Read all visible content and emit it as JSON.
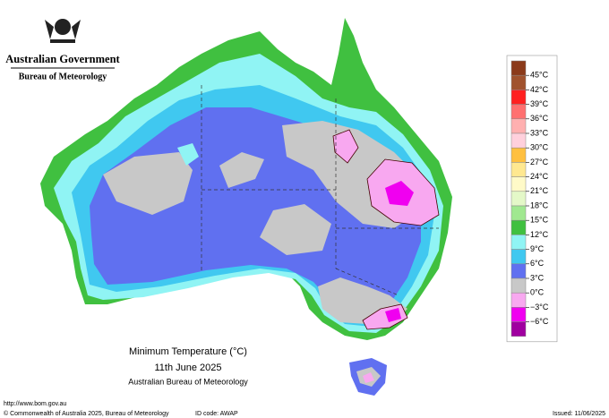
{
  "header": {
    "government": "Australian Government",
    "agency": "Bureau of Meteorology"
  },
  "legend": {
    "labels": [
      "45°C",
      "42°C",
      "39°C",
      "36°C",
      "33°C",
      "30°C",
      "27°C",
      "24°C",
      "21°C",
      "18°C",
      "15°C",
      "12°C",
      "9°C",
      "6°C",
      "3°C",
      "0°C",
      "−3°C",
      "−6°C"
    ],
    "colors": [
      "#8b3a1a",
      "#a0522d",
      "#ff2020",
      "#ff7070",
      "#ffb0b0",
      "#ffd0dc",
      "#ffc040",
      "#ffe890",
      "#fffac8",
      "#e4f8c8",
      "#a0e890",
      "#40c040",
      "#90f4f4",
      "#40c8f0",
      "#6070f0",
      "#c8c8c8",
      "#f8a8f0",
      "#f000f0",
      "#a000a0"
    ]
  },
  "title": {
    "line1": "Minimum Temperature (°C)",
    "line2": "11th June 2025",
    "line3": "Australian Bureau of Meteorology"
  },
  "footer": {
    "url": "http://www.bom.gov.au",
    "copyright": "© Commonwealth of Australia 2025, Bureau of Meteorology",
    "id": "ID code: AWAP",
    "issued": "Issued: 11/06/2025"
  }
}
